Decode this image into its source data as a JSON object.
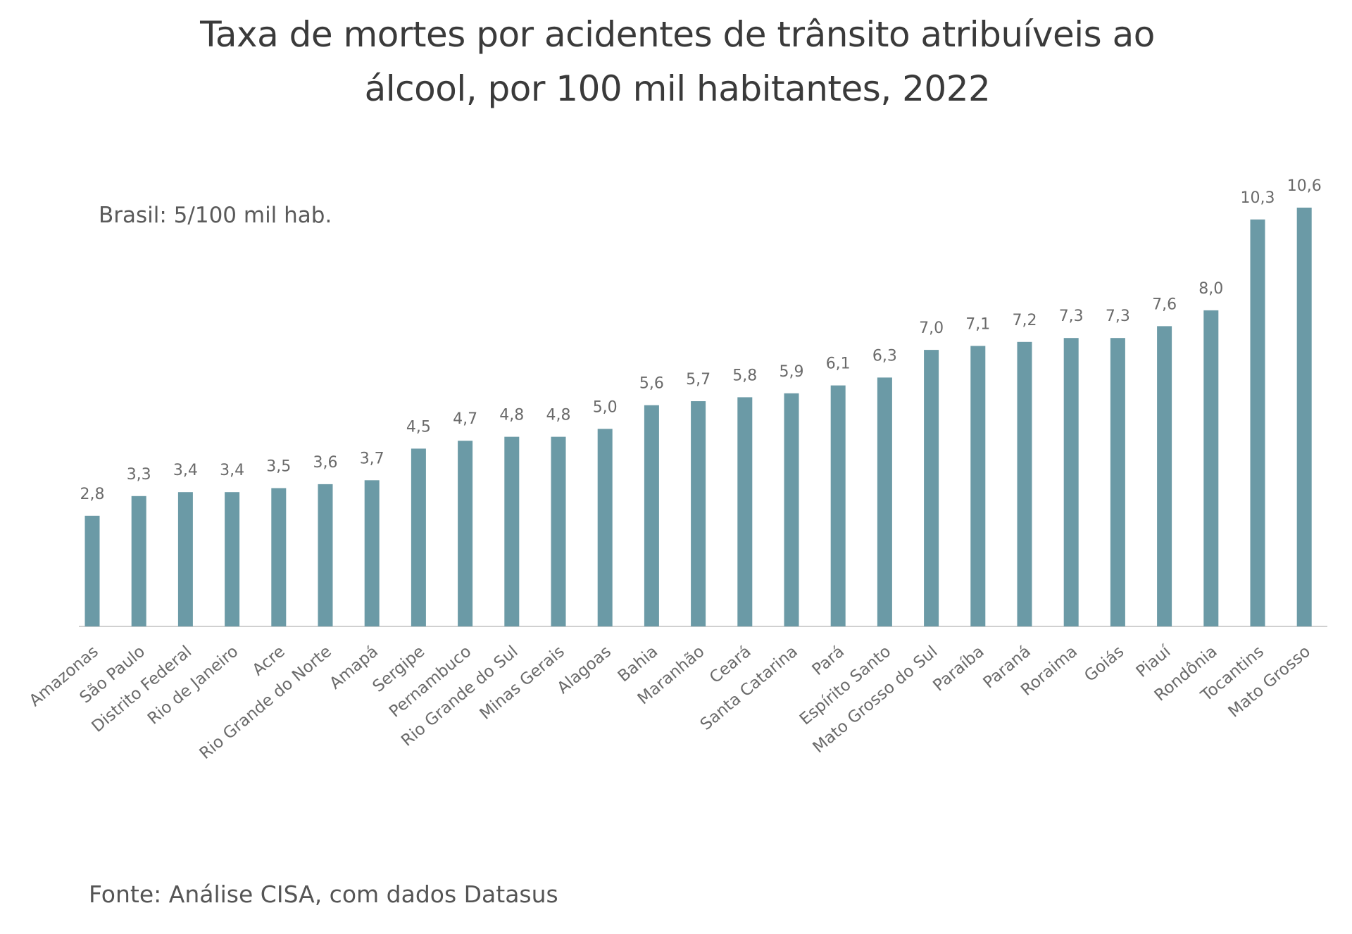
{
  "chart_data": {
    "type": "bar",
    "title_lines": [
      "Taxa de mortes por acidentes de trânsito atribuíveis ao",
      "álcool, por 100 mil habitantes, 2022"
    ],
    "annotation": "Brasil: 5/100 mil hab.",
    "source": "Fonte: Análise CISA, com dados Datasus",
    "xlabel": "",
    "ylabel": "",
    "ylim": [
      0,
      10.6
    ],
    "grid": false,
    "bar_color": "#6b9aa6",
    "categories": [
      "Amazonas",
      "São Paulo",
      "Distrito Federal",
      "Rio de Janeiro",
      "Acre",
      "Rio Grande do Norte",
      "Amapá",
      "Sergipe",
      "Pernambuco",
      "Rio Grande do Sul",
      "Minas Gerais",
      "Alagoas",
      "Bahia",
      "Maranhão",
      "Ceará",
      "Santa Catarina",
      "Pará",
      "Espírito Santo",
      "Mato Grosso do Sul",
      "Paraíba",
      "Paraná",
      "Roraima",
      "Goiás",
      "Piauí",
      "Rondônia",
      "Tocantins",
      "Mato Grosso"
    ],
    "values": [
      2.8,
      3.3,
      3.4,
      3.4,
      3.5,
      3.6,
      3.7,
      4.5,
      4.7,
      4.8,
      4.8,
      5.0,
      5.6,
      5.7,
      5.8,
      5.9,
      6.1,
      6.3,
      7.0,
      7.1,
      7.2,
      7.3,
      7.3,
      7.6,
      8.0,
      10.3,
      10.6
    ],
    "value_labels": [
      "2,8",
      "3,3",
      "3,4",
      "3,4",
      "3,5",
      "3,6",
      "3,7",
      "4,5",
      "4,7",
      "4,8",
      "4,8",
      "5,0",
      "5,6",
      "5,7",
      "5,8",
      "5,9",
      "6,1",
      "6,3",
      "7,0",
      "7,1",
      "7,2",
      "7,3",
      "7,3",
      "7,6",
      "8,0",
      "10,3",
      "10,6"
    ]
  }
}
